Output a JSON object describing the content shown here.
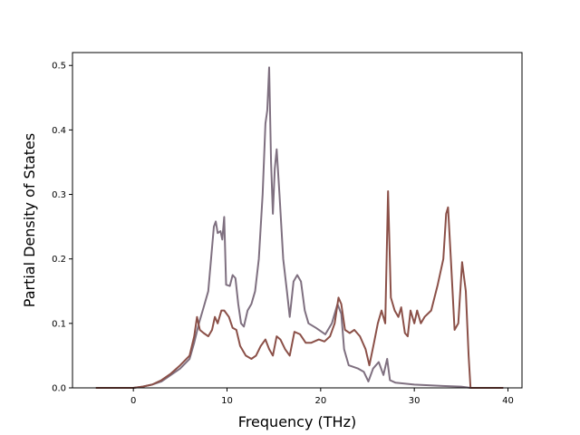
{
  "chart_data": {
    "type": "line",
    "xlabel": "Frequency (THz)",
    "ylabel": "Partial Density of States",
    "xlim": [
      -6.5,
      41.5
    ],
    "ylim": [
      0,
      0.52
    ],
    "xticks": [
      0,
      10,
      20,
      30,
      40
    ],
    "yticks": [
      0.0,
      0.1,
      0.2,
      0.3,
      0.4,
      0.5
    ],
    "xtick_labels": [
      "0",
      "10",
      "20",
      "30",
      "40"
    ],
    "ytick_labels": [
      "0.0",
      "0.1",
      "0.2",
      "0.3",
      "0.4",
      "0.5"
    ],
    "grid": false,
    "series": [
      {
        "color": "#7f7080",
        "points": [
          [
            -4,
            0
          ],
          [
            0,
            0
          ],
          [
            1,
            0.002
          ],
          [
            2,
            0.005
          ],
          [
            3,
            0.01
          ],
          [
            4,
            0.02
          ],
          [
            5,
            0.03
          ],
          [
            6,
            0.045
          ],
          [
            6.5,
            0.07
          ],
          [
            7,
            0.1
          ],
          [
            7.5,
            0.125
          ],
          [
            8,
            0.15
          ],
          [
            8.3,
            0.2
          ],
          [
            8.6,
            0.25
          ],
          [
            8.8,
            0.258
          ],
          [
            9,
            0.24
          ],
          [
            9.3,
            0.243
          ],
          [
            9.5,
            0.23
          ],
          [
            9.7,
            0.265
          ],
          [
            9.9,
            0.16
          ],
          [
            10.3,
            0.158
          ],
          [
            10.6,
            0.175
          ],
          [
            10.9,
            0.17
          ],
          [
            11.2,
            0.13
          ],
          [
            11.5,
            0.1
          ],
          [
            11.8,
            0.095
          ],
          [
            12.2,
            0.12
          ],
          [
            12.6,
            0.13
          ],
          [
            13,
            0.15
          ],
          [
            13.4,
            0.2
          ],
          [
            13.8,
            0.3
          ],
          [
            14.1,
            0.41
          ],
          [
            14.3,
            0.43
          ],
          [
            14.5,
            0.497
          ],
          [
            14.7,
            0.35
          ],
          [
            14.9,
            0.27
          ],
          [
            15.1,
            0.34
          ],
          [
            15.3,
            0.37
          ],
          [
            15.6,
            0.3
          ],
          [
            16,
            0.2
          ],
          [
            16.4,
            0.15
          ],
          [
            16.7,
            0.11
          ],
          [
            17.1,
            0.165
          ],
          [
            17.5,
            0.175
          ],
          [
            17.9,
            0.165
          ],
          [
            18.3,
            0.12
          ],
          [
            18.7,
            0.1
          ],
          [
            19.5,
            0.093
          ],
          [
            20.5,
            0.083
          ],
          [
            21.2,
            0.1
          ],
          [
            21.8,
            0.13
          ],
          [
            22.2,
            0.115
          ],
          [
            22.5,
            0.06
          ],
          [
            23,
            0.035
          ],
          [
            24,
            0.03
          ],
          [
            24.6,
            0.025
          ],
          [
            25.1,
            0.01
          ],
          [
            25.6,
            0.03
          ],
          [
            26.2,
            0.04
          ],
          [
            26.7,
            0.02
          ],
          [
            27.1,
            0.045
          ],
          [
            27.4,
            0.012
          ],
          [
            28,
            0.008
          ],
          [
            30,
            0.005
          ],
          [
            33,
            0.003
          ],
          [
            35,
            0.002
          ],
          [
            36,
            0
          ],
          [
            39.5,
            0
          ]
        ]
      },
      {
        "color": "#8b5048",
        "points": [
          [
            -4,
            0
          ],
          [
            0,
            0
          ],
          [
            1,
            0.002
          ],
          [
            2,
            0.005
          ],
          [
            3,
            0.012
          ],
          [
            4,
            0.022
          ],
          [
            5,
            0.035
          ],
          [
            6,
            0.05
          ],
          [
            6.5,
            0.08
          ],
          [
            6.8,
            0.11
          ],
          [
            7.1,
            0.09
          ],
          [
            7.5,
            0.085
          ],
          [
            8,
            0.08
          ],
          [
            8.4,
            0.09
          ],
          [
            8.7,
            0.11
          ],
          [
            9,
            0.1
          ],
          [
            9.4,
            0.12
          ],
          [
            9.7,
            0.12
          ],
          [
            10.2,
            0.11
          ],
          [
            10.6,
            0.093
          ],
          [
            11,
            0.09
          ],
          [
            11.4,
            0.065
          ],
          [
            12,
            0.05
          ],
          [
            12.6,
            0.045
          ],
          [
            13.1,
            0.05
          ],
          [
            13.6,
            0.065
          ],
          [
            14.1,
            0.075
          ],
          [
            14.5,
            0.06
          ],
          [
            14.9,
            0.05
          ],
          [
            15.3,
            0.08
          ],
          [
            15.7,
            0.075
          ],
          [
            16.2,
            0.06
          ],
          [
            16.7,
            0.05
          ],
          [
            17.2,
            0.087
          ],
          [
            17.8,
            0.083
          ],
          [
            18.4,
            0.07
          ],
          [
            19,
            0.07
          ],
          [
            19.8,
            0.075
          ],
          [
            20.4,
            0.072
          ],
          [
            21,
            0.08
          ],
          [
            21.5,
            0.1
          ],
          [
            21.9,
            0.14
          ],
          [
            22.2,
            0.13
          ],
          [
            22.6,
            0.09
          ],
          [
            23.1,
            0.085
          ],
          [
            23.6,
            0.09
          ],
          [
            24.2,
            0.08
          ],
          [
            24.8,
            0.06
          ],
          [
            25.2,
            0.035
          ],
          [
            25.7,
            0.07
          ],
          [
            26.1,
            0.1
          ],
          [
            26.5,
            0.12
          ],
          [
            26.9,
            0.1
          ],
          [
            27.2,
            0.305
          ],
          [
            27.5,
            0.14
          ],
          [
            27.9,
            0.12
          ],
          [
            28.3,
            0.11
          ],
          [
            28.6,
            0.125
          ],
          [
            29,
            0.085
          ],
          [
            29.3,
            0.08
          ],
          [
            29.6,
            0.12
          ],
          [
            30,
            0.1
          ],
          [
            30.3,
            0.12
          ],
          [
            30.7,
            0.1
          ],
          [
            31.1,
            0.11
          ],
          [
            31.8,
            0.12
          ],
          [
            32.5,
            0.16
          ],
          [
            33.1,
            0.2
          ],
          [
            33.4,
            0.27
          ],
          [
            33.6,
            0.28
          ],
          [
            33.9,
            0.2
          ],
          [
            34.3,
            0.09
          ],
          [
            34.7,
            0.1
          ],
          [
            35.1,
            0.195
          ],
          [
            35.5,
            0.15
          ],
          [
            35.8,
            0.05
          ],
          [
            36,
            0
          ],
          [
            39.5,
            0
          ]
        ]
      }
    ]
  }
}
